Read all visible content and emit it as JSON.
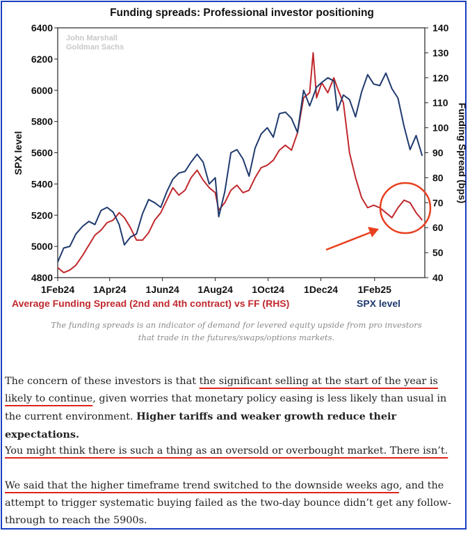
{
  "chart_data": {
    "type": "line",
    "title": "Funding spreads: Professional investor positioning",
    "watermark": [
      "John Marshall",
      "Goldman Sachs"
    ],
    "ylabel_left": "SPX level",
    "ylabel_right": "Funding Spread (bps)",
    "ylim_left": [
      4800,
      6400
    ],
    "ylim_right": [
      40,
      140
    ],
    "yticks_left": [
      "4800",
      "5000",
      "5200",
      "5400",
      "5600",
      "5800",
      "6000",
      "6200",
      "6400"
    ],
    "yticks_right": [
      "40",
      "50",
      "60",
      "70",
      "80",
      "90",
      "100",
      "110",
      "120",
      "130",
      "140"
    ],
    "x_ticks": [
      {
        "label": "1Feb24",
        "date": "2024-02-01"
      },
      {
        "label": "1Apr24",
        "date": "2024-04-01"
      },
      {
        "label": "1Jun24",
        "date": "2024-06-01"
      },
      {
        "label": "1Aug24",
        "date": "2024-08-01"
      },
      {
        "label": "1Oct24",
        "date": "2024-10-01"
      },
      {
        "label": "1Dec24",
        "date": "2024-12-01"
      },
      {
        "label": "1Feb25",
        "date": "2025-02-01"
      }
    ],
    "xlim": [
      "2024-02-01",
      "2025-03-31"
    ],
    "grid": false,
    "series": [
      {
        "name": "Average Funding Spread (2nd and 4th contract) vs FF (RHS)",
        "axis": "right",
        "color": "#c0282d",
        "points": [
          [
            "2024-02-01",
            44
          ],
          [
            "2024-02-08",
            42
          ],
          [
            "2024-02-15",
            43
          ],
          [
            "2024-02-22",
            45
          ],
          [
            "2024-03-01",
            49
          ],
          [
            "2024-03-08",
            53
          ],
          [
            "2024-03-15",
            57
          ],
          [
            "2024-03-22",
            59
          ],
          [
            "2024-03-29",
            62
          ],
          [
            "2024-04-05",
            63
          ],
          [
            "2024-04-12",
            66
          ],
          [
            "2024-04-18",
            64
          ],
          [
            "2024-04-25",
            60
          ],
          [
            "2024-05-02",
            55
          ],
          [
            "2024-05-09",
            55
          ],
          [
            "2024-05-16",
            58
          ],
          [
            "2024-05-23",
            63
          ],
          [
            "2024-05-30",
            66
          ],
          [
            "2024-06-06",
            71
          ],
          [
            "2024-06-13",
            76
          ],
          [
            "2024-06-20",
            73
          ],
          [
            "2024-06-27",
            75
          ],
          [
            "2024-07-04",
            80
          ],
          [
            "2024-07-11",
            83
          ],
          [
            "2024-07-18",
            79
          ],
          [
            "2024-07-25",
            76
          ],
          [
            "2024-08-01",
            74
          ],
          [
            "2024-08-05",
            67
          ],
          [
            "2024-08-12",
            70
          ],
          [
            "2024-08-19",
            75
          ],
          [
            "2024-08-26",
            77
          ],
          [
            "2024-09-02",
            74
          ],
          [
            "2024-09-09",
            75
          ],
          [
            "2024-09-16",
            80
          ],
          [
            "2024-09-23",
            84
          ],
          [
            "2024-09-30",
            85
          ],
          [
            "2024-10-07",
            87
          ],
          [
            "2024-10-14",
            91
          ],
          [
            "2024-10-21",
            93
          ],
          [
            "2024-10-28",
            91
          ],
          [
            "2024-11-04",
            98
          ],
          [
            "2024-11-11",
            112
          ],
          [
            "2024-11-18",
            114
          ],
          [
            "2024-11-22",
            130
          ],
          [
            "2024-11-26",
            112
          ],
          [
            "2024-12-02",
            118
          ],
          [
            "2024-12-09",
            114
          ],
          [
            "2024-12-16",
            120
          ],
          [
            "2024-12-20",
            116
          ],
          [
            "2024-12-27",
            110
          ],
          [
            "2025-01-03",
            90
          ],
          [
            "2025-01-10",
            80
          ],
          [
            "2025-01-17",
            72
          ],
          [
            "2025-01-24",
            68
          ],
          [
            "2025-01-31",
            69
          ],
          [
            "2025-02-07",
            68
          ],
          [
            "2025-02-14",
            66
          ],
          [
            "2025-02-21",
            64
          ],
          [
            "2025-02-28",
            68
          ],
          [
            "2025-03-07",
            71
          ],
          [
            "2025-03-14",
            70
          ],
          [
            "2025-03-21",
            66
          ],
          [
            "2025-03-28",
            63
          ]
        ]
      },
      {
        "name": "SPX level",
        "axis": "left",
        "color": "#1f3a6e",
        "points": [
          [
            "2024-02-01",
            4900
          ],
          [
            "2024-02-08",
            4990
          ],
          [
            "2024-02-15",
            5000
          ],
          [
            "2024-02-22",
            5080
          ],
          [
            "2024-03-01",
            5130
          ],
          [
            "2024-03-08",
            5160
          ],
          [
            "2024-03-15",
            5140
          ],
          [
            "2024-03-22",
            5230
          ],
          [
            "2024-03-29",
            5250
          ],
          [
            "2024-04-05",
            5220
          ],
          [
            "2024-04-12",
            5140
          ],
          [
            "2024-04-18",
            5010
          ],
          [
            "2024-04-25",
            5060
          ],
          [
            "2024-05-02",
            5080
          ],
          [
            "2024-05-09",
            5210
          ],
          [
            "2024-05-16",
            5300
          ],
          [
            "2024-05-23",
            5280
          ],
          [
            "2024-05-30",
            5250
          ],
          [
            "2024-06-06",
            5350
          ],
          [
            "2024-06-13",
            5430
          ],
          [
            "2024-06-20",
            5470
          ],
          [
            "2024-06-27",
            5480
          ],
          [
            "2024-07-04",
            5540
          ],
          [
            "2024-07-11",
            5590
          ],
          [
            "2024-07-18",
            5540
          ],
          [
            "2024-07-25",
            5400
          ],
          [
            "2024-08-01",
            5440
          ],
          [
            "2024-08-05",
            5190
          ],
          [
            "2024-08-12",
            5350
          ],
          [
            "2024-08-19",
            5600
          ],
          [
            "2024-08-26",
            5620
          ],
          [
            "2024-09-02",
            5560
          ],
          [
            "2024-09-09",
            5450
          ],
          [
            "2024-09-16",
            5630
          ],
          [
            "2024-09-23",
            5720
          ],
          [
            "2024-09-30",
            5760
          ],
          [
            "2024-10-07",
            5700
          ],
          [
            "2024-10-14",
            5850
          ],
          [
            "2024-10-21",
            5860
          ],
          [
            "2024-10-28",
            5820
          ],
          [
            "2024-11-04",
            5730
          ],
          [
            "2024-11-11",
            6000
          ],
          [
            "2024-11-18",
            5900
          ],
          [
            "2024-11-22",
            5960
          ],
          [
            "2024-11-26",
            6020
          ],
          [
            "2024-12-02",
            6050
          ],
          [
            "2024-12-09",
            6080
          ],
          [
            "2024-12-16",
            6060
          ],
          [
            "2024-12-20",
            5870
          ],
          [
            "2024-12-27",
            5970
          ],
          [
            "2025-01-03",
            5940
          ],
          [
            "2025-01-10",
            5830
          ],
          [
            "2025-01-17",
            5990
          ],
          [
            "2025-01-24",
            6100
          ],
          [
            "2025-01-31",
            6040
          ],
          [
            "2025-02-07",
            6030
          ],
          [
            "2025-02-14",
            6110
          ],
          [
            "2025-02-21",
            6010
          ],
          [
            "2025-02-28",
            5950
          ],
          [
            "2025-03-07",
            5770
          ],
          [
            "2025-03-14",
            5620
          ],
          [
            "2025-03-21",
            5710
          ],
          [
            "2025-03-28",
            5580
          ]
        ]
      }
    ],
    "annotations": {
      "circle_color": "#e8401f",
      "arrow_color": "#e8401f"
    }
  },
  "caption": "The funding spreads is an indicator of demand for levered equity upside from pro investors that trade in the futures/swaps/options markets.",
  "paragraphs": {
    "p1": {
      "pre": "The concern of these investors is that ",
      "underlined": "the significant selling at the start of the year is likely to continue",
      "mid": ", given worries that monetary policy easing is less likely than usual in the current environment. ",
      "bold": "Higher tariffs and weaker growth reduce their expectations."
    },
    "p2": {
      "underlined": "You might think there is such a thing as an oversold or overbought market. There isn’t."
    },
    "p3": {
      "underlined": "We said that the higher timeframe trend switched to the downside weeks ago",
      "post": ", and the attempt to trigger systematic buying failed as the two-day bounce didn’t get any follow-through to reach the 5900s."
    }
  }
}
